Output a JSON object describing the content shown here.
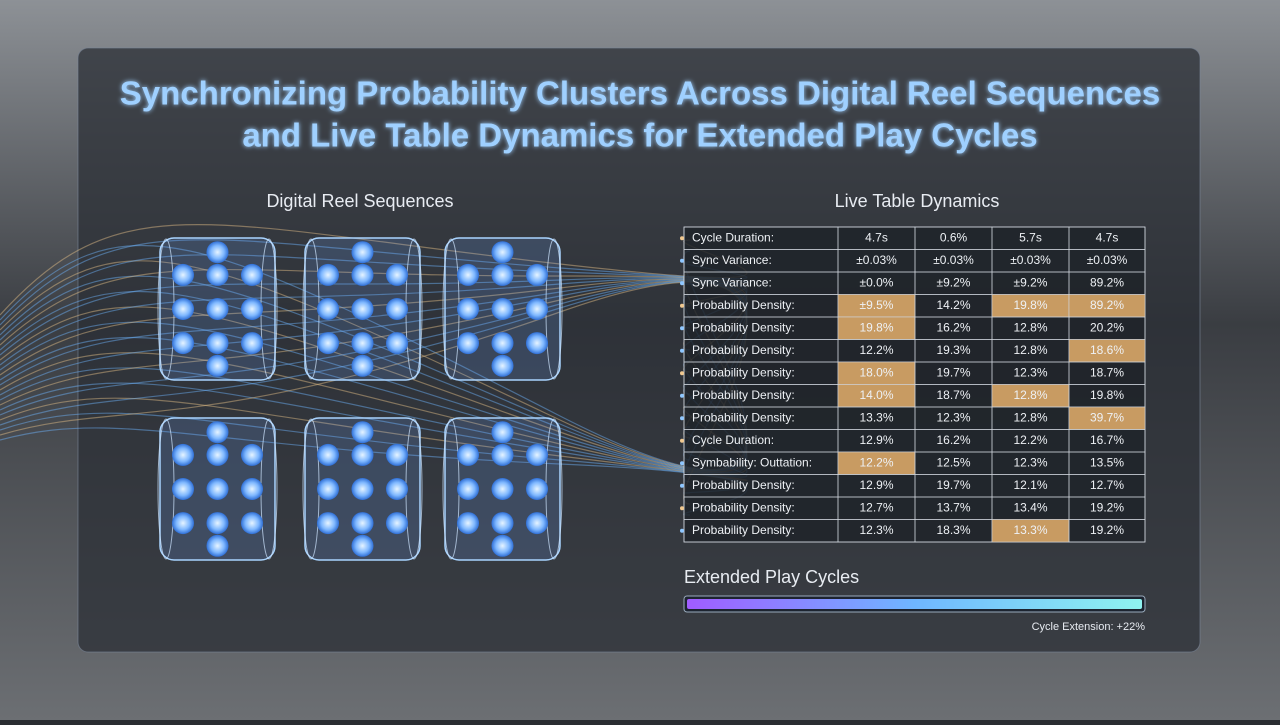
{
  "header": {
    "title": [
      "Synchronizing Probability Clusters Across Digital Reel Sequences",
      "and Live Table Dynamics for Extended Play Cycles"
    ]
  },
  "left_panel": {
    "label": "Digital Reel Sequences"
  },
  "right_panel": {
    "label": "Live Table Dynamics"
  },
  "table": {
    "rows": [
      [
        "Cycle Duration:",
        "4.7s",
        "0.6%",
        "5.7s",
        "4.7s"
      ],
      [
        "Sync Variance:",
        "±0.03%",
        "±0.03%",
        "±0.03%",
        "±0.03%"
      ],
      [
        "Sync Variance:",
        "±0.0%",
        "±9.2%",
        "±9.2%",
        "89.2%"
      ],
      [
        "Probability Density:",
        "±9.5%",
        "14.2%",
        "19.8%",
        "89.2%"
      ],
      [
        "Probability Density:",
        "19.8%",
        "16.2%",
        "12.8%",
        "20.2%"
      ],
      [
        "Probability Density:",
        "12.2%",
        "19.3%",
        "12.8%",
        "18.6%"
      ],
      [
        "Probability Density:",
        "18.0%",
        "19.7%",
        "12.3%",
        "18.7%"
      ],
      [
        "Probability Density:",
        "14.0%",
        "18.7%",
        "12.8%",
        "19.8%"
      ],
      [
        "Probability Density:",
        "13.3%",
        "12.3%",
        "12.8%",
        "39.7%"
      ],
      [
        "Cycle Duration:",
        "12.9%",
        "16.2%",
        "12.2%",
        "16.7%"
      ],
      [
        "Symbability: Outtation:",
        "12.2%",
        "12.5%",
        "12.3%",
        "13.5%"
      ],
      [
        "Probability Density:",
        "12.9%",
        "19.7%",
        "12.1%",
        "12.7%"
      ],
      [
        "Probability Density:",
        "12.7%",
        "13.7%",
        "13.4%",
        "19.2%"
      ],
      [
        "Probability Density:",
        "12.3%",
        "18.3%",
        "13.3%",
        "19.2%"
      ]
    ]
  },
  "progress": {
    "label": "Extended Play Cycles",
    "caption": "Cycle Extension: +22%"
  }
}
